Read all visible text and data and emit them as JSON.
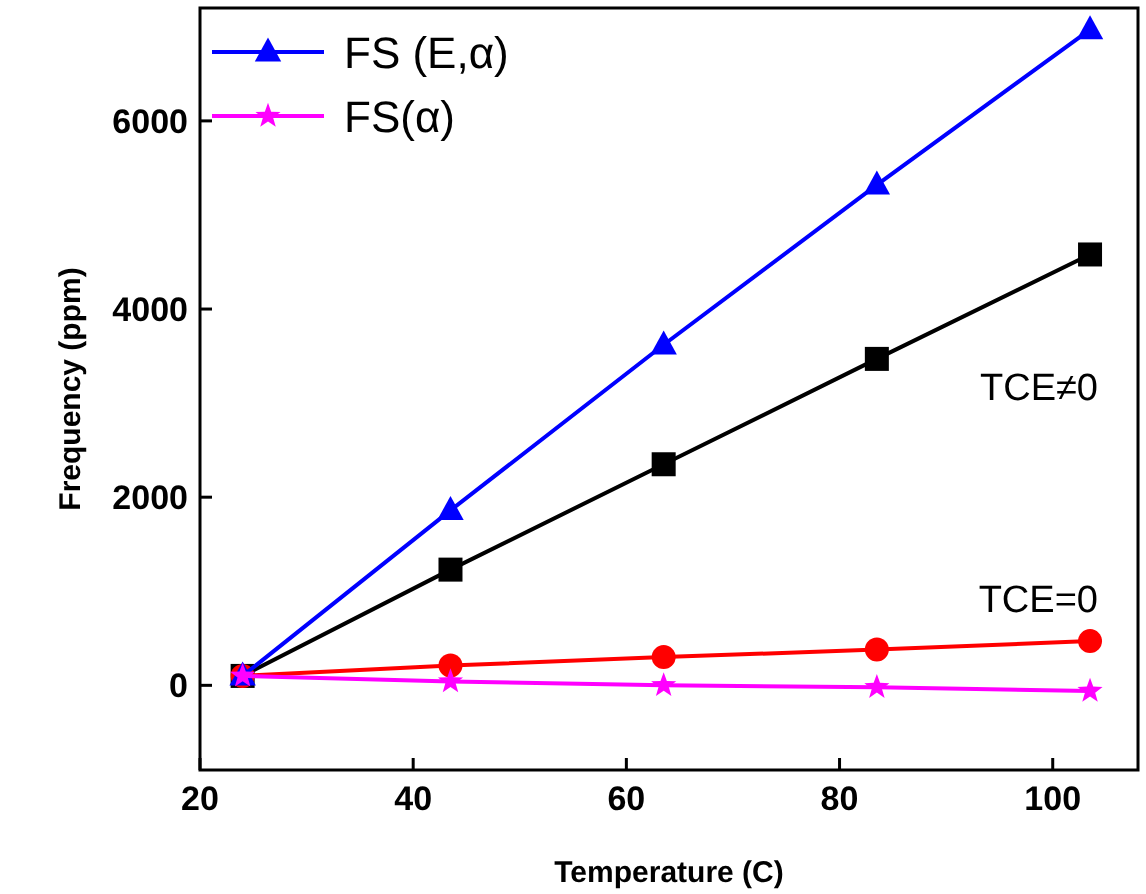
{
  "chart_data": {
    "type": "line",
    "xlabel": "Temperature (C)",
    "ylabel": "Frequency (ppm)",
    "xlim": [
      20,
      108
    ],
    "ylim": [
      -900,
      7200
    ],
    "xticks": [
      20,
      40,
      60,
      80,
      100
    ],
    "yticks": [
      0,
      2000,
      4000,
      6000
    ],
    "x": [
      24,
      43.5,
      63.5,
      83.5,
      103.5
    ],
    "legend": "top left",
    "grid": false,
    "series": [
      {
        "color": "#000000",
        "marker": "square",
        "values": [
          100,
          1230,
          2350,
          3470,
          4580
        ]
      },
      {
        "color": "#ff0000",
        "marker": "circle",
        "values": [
          100,
          210,
          300,
          380,
          470
        ]
      },
      {
        "name": "FS (E,α)",
        "color": "#0000ff",
        "marker": "triangle",
        "values": [
          100,
          1860,
          3620,
          5320,
          6970
        ]
      },
      {
        "name": "FS(α)",
        "color": "#ff00ff",
        "marker": "star",
        "values": [
          100,
          40,
          0,
          -20,
          -60
        ]
      }
    ],
    "annotations": [
      "TCE≠0",
      "TCE=0"
    ]
  }
}
